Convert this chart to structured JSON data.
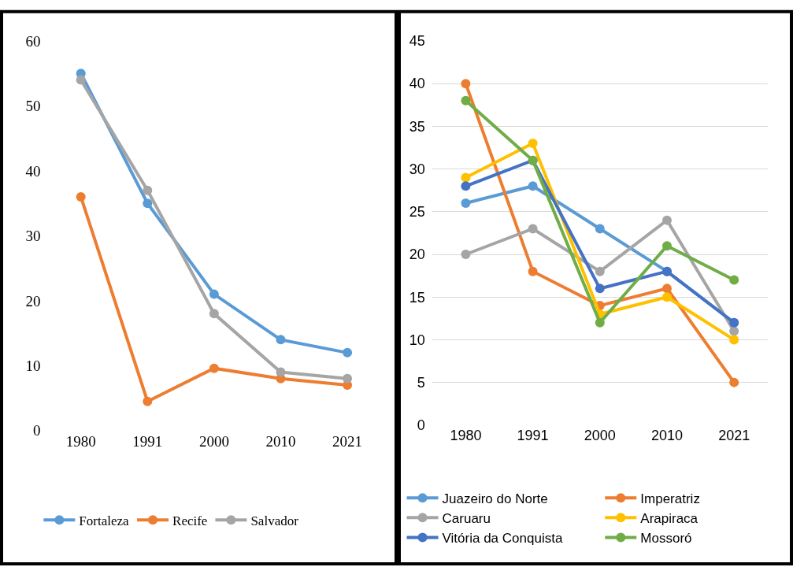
{
  "chart_data": [
    {
      "type": "line",
      "categories": [
        "1980",
        "1991",
        "2000",
        "2010",
        "2021"
      ],
      "ylim": [
        0,
        60
      ],
      "yticks": [
        0,
        10,
        20,
        30,
        40,
        50,
        60
      ],
      "grid": false,
      "legend": "bottom",
      "marker": "circle",
      "line_style": "solid",
      "series": [
        {
          "name": "Fortaleza",
          "color": "#5b9bd5",
          "values": [
            55,
            35,
            21,
            14,
            12
          ]
        },
        {
          "name": "Recife",
          "color": "#ed7d31",
          "values": [
            36,
            4.5,
            9.6,
            8,
            7
          ]
        },
        {
          "name": "Salvador",
          "color": "#a5a5a5",
          "values": [
            54,
            37,
            18,
            9,
            8
          ]
        }
      ]
    },
    {
      "type": "line",
      "categories": [
        "1980",
        "1991",
        "2000",
        "2010",
        "2021"
      ],
      "ylim": [
        0,
        45
      ],
      "yticks": [
        0,
        5,
        10,
        15,
        20,
        25,
        30,
        35,
        40,
        45
      ],
      "grid": "y",
      "legend": "bottom",
      "marker": "circle",
      "line_style": "solid",
      "series": [
        {
          "name": "Juazeiro do Norte",
          "color": "#5b9bd5",
          "values": [
            26,
            28,
            23,
            18,
            12
          ]
        },
        {
          "name": "Imperatriz",
          "color": "#ed7d31",
          "values": [
            40,
            18,
            14,
            16,
            5
          ]
        },
        {
          "name": "Caruaru",
          "color": "#a5a5a5",
          "values": [
            20,
            23,
            18,
            24,
            11
          ]
        },
        {
          "name": "Arapiraca",
          "color": "#ffc000",
          "values": [
            29,
            33,
            13,
            15,
            10
          ]
        },
        {
          "name": "Vitória da Conquista",
          "color": "#4472c4",
          "values": [
            28,
            31,
            16,
            18,
            12
          ]
        },
        {
          "name": "Mossoró",
          "color": "#70ad47",
          "values": [
            38,
            31,
            12,
            21,
            17
          ]
        }
      ]
    }
  ]
}
